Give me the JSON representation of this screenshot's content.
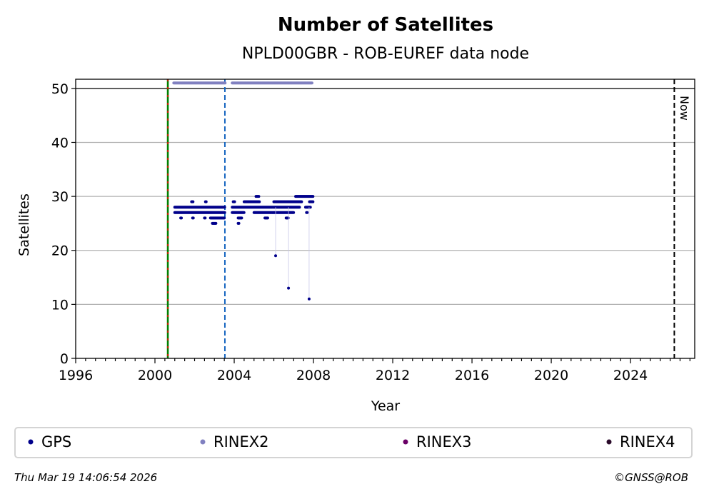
{
  "chart_data": {
    "type": "scatter",
    "title": "Number of Satellites",
    "subtitle": "NPLD00GBR - ROB-EUREF data node",
    "xlabel": "Year",
    "ylabel": "Satellites",
    "xlim": [
      1996,
      2027.24
    ],
    "ylim": [
      0,
      51.7
    ],
    "x_ticks": [
      1996,
      2000,
      2004,
      2008,
      2012,
      2016,
      2020,
      2024
    ],
    "x_tick_labels": [
      "1996",
      "2000",
      "2004",
      "2008",
      "2012",
      "2016",
      "2020",
      "2024"
    ],
    "y_ticks": [
      0,
      10,
      20,
      30,
      40,
      50
    ],
    "y_tick_labels": [
      "0",
      "10",
      "20",
      "30",
      "40",
      "50"
    ],
    "grid": "horizontal",
    "legend_placement": "bottom",
    "vertical_lines": [
      {
        "x": 2000.65,
        "style": "green-red-dashed"
      },
      {
        "x": 2003.53,
        "style": "blue-dashed"
      },
      {
        "x": 2026.21,
        "style": "black-dashed",
        "label": "Now"
      }
    ],
    "series": [
      {
        "name": "GPS",
        "color": "#00008b",
        "ranges": [
          [
            2001.0,
            2003.55,
            28
          ],
          [
            2001.0,
            2003.55,
            27
          ],
          [
            2003.9,
            2007.3,
            28
          ],
          [
            2003.9,
            2004.5,
            27
          ],
          [
            2005.0,
            2007.0,
            27
          ],
          [
            2001.85,
            2001.95,
            29
          ],
          [
            2002.55,
            2002.6,
            29
          ],
          [
            2003.95,
            2004.05,
            29
          ],
          [
            2004.5,
            2005.3,
            29
          ],
          [
            2006.0,
            2007.4,
            29
          ],
          [
            2007.8,
            2008.0,
            29
          ],
          [
            2005.1,
            2005.25,
            30
          ],
          [
            2007.1,
            2008.0,
            30
          ],
          [
            2001.3,
            2001.35,
            26
          ],
          [
            2001.9,
            2001.95,
            26
          ],
          [
            2002.5,
            2002.55,
            26
          ],
          [
            2002.8,
            2003.5,
            26
          ],
          [
            2004.2,
            2004.4,
            26
          ],
          [
            2005.55,
            2005.7,
            26
          ],
          [
            2006.62,
            2006.75,
            26
          ],
          [
            2002.9,
            2003.1,
            25
          ],
          [
            2004.2,
            2004.25,
            25
          ],
          [
            2007.6,
            2007.85,
            28
          ],
          [
            2007.65,
            2007.7,
            27
          ]
        ],
        "points": [
          [
            2006.09,
            19
          ],
          [
            2006.74,
            13
          ],
          [
            2007.78,
            11
          ]
        ]
      },
      {
        "name": "RINEX2",
        "color": "#8080c0",
        "ranges": [
          [
            2000.95,
            2003.55,
            51
          ],
          [
            2003.9,
            2007.95,
            51
          ]
        ]
      },
      {
        "name": "RINEX3",
        "color": "#6a0066",
        "ranges": []
      },
      {
        "name": "RINEX4",
        "color": "#2a0a2a",
        "ranges": []
      }
    ]
  },
  "footer": {
    "timestamp": "Thu Mar 19 14:06:54 2026",
    "copyright": "©GNSS@ROB"
  }
}
